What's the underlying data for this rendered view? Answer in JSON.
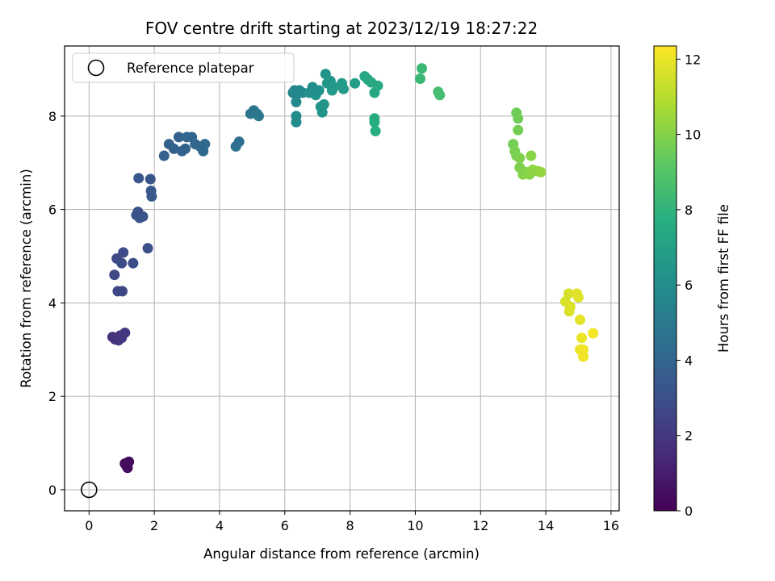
{
  "chart_data": {
    "type": "scatter",
    "title": "FOV centre drift starting at 2023/12/19 18:27:22",
    "xlabel": "Angular distance from reference (arcmin)",
    "ylabel": "Rotation from reference (arcmin)",
    "xlim": [
      -0.75,
      16.25
    ],
    "ylim": [
      -0.45,
      9.5
    ],
    "xticks": [
      0,
      2,
      4,
      6,
      8,
      10,
      12,
      14,
      16
    ],
    "yticks": [
      0,
      2,
      4,
      6,
      8
    ],
    "grid": true,
    "legend": {
      "placement": "upper-left",
      "entries": [
        "Reference platepar"
      ]
    },
    "reference_point": {
      "x": 0,
      "y": 0
    },
    "colorbar": {
      "label": "Hours from first FF file",
      "range": [
        0,
        12.35
      ],
      "ticks": [
        0,
        2,
        4,
        6,
        8,
        10,
        12
      ],
      "colormap": "viridis"
    },
    "points": [
      {
        "x": 1.1,
        "y": 0.56,
        "h": 0.2
      },
      {
        "x": 1.22,
        "y": 0.6,
        "h": 0.3
      },
      {
        "x": 1.18,
        "y": 0.47,
        "h": 0.3
      },
      {
        "x": 1.14,
        "y": 0.52,
        "h": 0.4
      },
      {
        "x": 0.72,
        "y": 3.27,
        "h": 1.7
      },
      {
        "x": 0.8,
        "y": 3.22,
        "h": 1.7
      },
      {
        "x": 0.9,
        "y": 3.2,
        "h": 1.8
      },
      {
        "x": 0.95,
        "y": 3.3,
        "h": 1.8
      },
      {
        "x": 1.1,
        "y": 3.36,
        "h": 1.9
      },
      {
        "x": 1.0,
        "y": 3.25,
        "h": 1.9
      },
      {
        "x": 0.88,
        "y": 4.25,
        "h": 2.6
      },
      {
        "x": 1.02,
        "y": 4.25,
        "h": 2.6
      },
      {
        "x": 0.78,
        "y": 4.6,
        "h": 2.7
      },
      {
        "x": 0.85,
        "y": 4.95,
        "h": 2.7
      },
      {
        "x": 1.0,
        "y": 4.85,
        "h": 2.8
      },
      {
        "x": 1.05,
        "y": 5.08,
        "h": 2.8
      },
      {
        "x": 1.35,
        "y": 4.85,
        "h": 2.9
      },
      {
        "x": 1.8,
        "y": 5.17,
        "h": 3.0
      },
      {
        "x": 1.45,
        "y": 5.88,
        "h": 3.1
      },
      {
        "x": 1.5,
        "y": 5.95,
        "h": 3.1
      },
      {
        "x": 1.55,
        "y": 5.82,
        "h": 3.2
      },
      {
        "x": 1.65,
        "y": 5.85,
        "h": 3.2
      },
      {
        "x": 1.52,
        "y": 6.67,
        "h": 3.3
      },
      {
        "x": 1.88,
        "y": 6.65,
        "h": 3.3
      },
      {
        "x": 1.9,
        "y": 6.4,
        "h": 3.4
      },
      {
        "x": 1.92,
        "y": 6.28,
        "h": 3.4
      },
      {
        "x": 2.3,
        "y": 7.15,
        "h": 3.7
      },
      {
        "x": 2.45,
        "y": 7.4,
        "h": 3.7
      },
      {
        "x": 2.6,
        "y": 7.3,
        "h": 3.8
      },
      {
        "x": 2.75,
        "y": 7.55,
        "h": 3.8
      },
      {
        "x": 2.85,
        "y": 7.25,
        "h": 3.9
      },
      {
        "x": 2.95,
        "y": 7.3,
        "h": 3.9
      },
      {
        "x": 3.0,
        "y": 7.55,
        "h": 4.0
      },
      {
        "x": 3.15,
        "y": 7.55,
        "h": 4.0
      },
      {
        "x": 3.25,
        "y": 7.4,
        "h": 4.1
      },
      {
        "x": 3.4,
        "y": 7.35,
        "h": 4.1
      },
      {
        "x": 3.5,
        "y": 7.25,
        "h": 4.2
      },
      {
        "x": 3.55,
        "y": 7.4,
        "h": 4.2
      },
      {
        "x": 4.5,
        "y": 7.35,
        "h": 4.5
      },
      {
        "x": 4.6,
        "y": 7.45,
        "h": 4.5
      },
      {
        "x": 4.95,
        "y": 8.05,
        "h": 4.8
      },
      {
        "x": 5.05,
        "y": 8.12,
        "h": 4.8
      },
      {
        "x": 5.15,
        "y": 8.05,
        "h": 4.9
      },
      {
        "x": 5.2,
        "y": 8.0,
        "h": 4.9
      },
      {
        "x": 6.25,
        "y": 8.5,
        "h": 5.6
      },
      {
        "x": 6.35,
        "y": 8.45,
        "h": 5.6
      },
      {
        "x": 6.3,
        "y": 8.55,
        "h": 5.7
      },
      {
        "x": 6.45,
        "y": 8.55,
        "h": 5.7
      },
      {
        "x": 6.55,
        "y": 8.5,
        "h": 5.8
      },
      {
        "x": 6.35,
        "y": 8.3,
        "h": 5.8
      },
      {
        "x": 6.35,
        "y": 8.0,
        "h": 5.9
      },
      {
        "x": 6.35,
        "y": 7.87,
        "h": 5.9
      },
      {
        "x": 6.75,
        "y": 8.5,
        "h": 6.1
      },
      {
        "x": 6.85,
        "y": 8.62,
        "h": 6.1
      },
      {
        "x": 6.95,
        "y": 8.45,
        "h": 6.2
      },
      {
        "x": 7.05,
        "y": 8.55,
        "h": 6.2
      },
      {
        "x": 7.1,
        "y": 8.2,
        "h": 6.3
      },
      {
        "x": 7.15,
        "y": 8.08,
        "h": 6.3
      },
      {
        "x": 7.2,
        "y": 8.25,
        "h": 6.4
      },
      {
        "x": 7.25,
        "y": 8.9,
        "h": 6.4
      },
      {
        "x": 7.3,
        "y": 8.7,
        "h": 6.5
      },
      {
        "x": 7.4,
        "y": 8.75,
        "h": 6.5
      },
      {
        "x": 7.45,
        "y": 8.55,
        "h": 6.6
      },
      {
        "x": 7.5,
        "y": 8.62,
        "h": 6.6
      },
      {
        "x": 7.75,
        "y": 8.7,
        "h": 6.7
      },
      {
        "x": 7.8,
        "y": 8.58,
        "h": 6.7
      },
      {
        "x": 8.15,
        "y": 8.7,
        "h": 6.9
      },
      {
        "x": 8.45,
        "y": 8.85,
        "h": 7.3
      },
      {
        "x": 8.55,
        "y": 8.78,
        "h": 7.3
      },
      {
        "x": 8.65,
        "y": 8.72,
        "h": 7.4
      },
      {
        "x": 8.75,
        "y": 8.5,
        "h": 7.4
      },
      {
        "x": 8.85,
        "y": 8.65,
        "h": 7.5
      },
      {
        "x": 8.75,
        "y": 7.95,
        "h": 7.6
      },
      {
        "x": 8.75,
        "y": 7.87,
        "h": 7.6
      },
      {
        "x": 8.78,
        "y": 7.68,
        "h": 7.7
      },
      {
        "x": 10.15,
        "y": 8.8,
        "h": 8.3
      },
      {
        "x": 10.2,
        "y": 9.02,
        "h": 8.3
      },
      {
        "x": 10.7,
        "y": 8.52,
        "h": 8.6
      },
      {
        "x": 10.75,
        "y": 8.45,
        "h": 8.6
      },
      {
        "x": 13.1,
        "y": 8.07,
        "h": 9.6
      },
      {
        "x": 13.15,
        "y": 7.95,
        "h": 9.6
      },
      {
        "x": 13.15,
        "y": 7.7,
        "h": 9.7
      },
      {
        "x": 13.0,
        "y": 7.4,
        "h": 9.7
      },
      {
        "x": 13.05,
        "y": 7.25,
        "h": 9.8
      },
      {
        "x": 13.1,
        "y": 7.15,
        "h": 9.8
      },
      {
        "x": 13.2,
        "y": 7.1,
        "h": 9.9
      },
      {
        "x": 13.2,
        "y": 6.9,
        "h": 9.9
      },
      {
        "x": 13.3,
        "y": 6.75,
        "h": 10.0
      },
      {
        "x": 13.4,
        "y": 6.8,
        "h": 10.0
      },
      {
        "x": 13.5,
        "y": 6.75,
        "h": 10.1
      },
      {
        "x": 13.55,
        "y": 7.15,
        "h": 10.1
      },
      {
        "x": 13.6,
        "y": 6.85,
        "h": 10.2
      },
      {
        "x": 13.75,
        "y": 6.82,
        "h": 10.2
      },
      {
        "x": 13.85,
        "y": 6.8,
        "h": 10.3
      },
      {
        "x": 14.6,
        "y": 4.03,
        "h": 11.6
      },
      {
        "x": 14.7,
        "y": 4.2,
        "h": 11.6
      },
      {
        "x": 14.75,
        "y": 3.92,
        "h": 11.7
      },
      {
        "x": 14.72,
        "y": 3.82,
        "h": 11.7
      },
      {
        "x": 14.95,
        "y": 4.2,
        "h": 11.8
      },
      {
        "x": 15.0,
        "y": 4.12,
        "h": 11.8
      },
      {
        "x": 15.05,
        "y": 3.64,
        "h": 11.9
      },
      {
        "x": 15.1,
        "y": 3.25,
        "h": 12.0
      },
      {
        "x": 15.05,
        "y": 3.0,
        "h": 12.0
      },
      {
        "x": 15.15,
        "y": 3.0,
        "h": 12.1
      },
      {
        "x": 15.15,
        "y": 2.85,
        "h": 12.1
      },
      {
        "x": 15.45,
        "y": 3.35,
        "h": 12.2
      }
    ]
  }
}
